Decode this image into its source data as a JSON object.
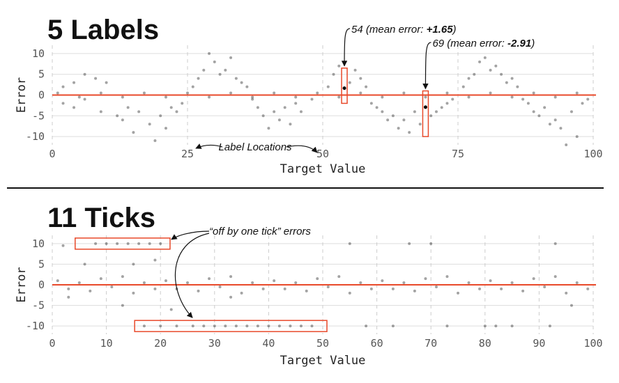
{
  "chart_data": [
    {
      "type": "scatter",
      "title": "5 Labels",
      "xlabel": "Target Value",
      "ylabel": "Error",
      "xlim": [
        0,
        100
      ],
      "ylim": [
        -12,
        12
      ],
      "xticks": [
        0,
        25,
        50,
        75,
        100
      ],
      "yticks": [
        -10,
        -5,
        0,
        5,
        10
      ],
      "grid": true,
      "point_color": "#333333",
      "reference_line": {
        "y": 0,
        "color": "#e8492a"
      },
      "x": [
        2,
        2,
        4,
        4,
        6,
        6,
        8,
        9,
        10,
        12,
        13,
        14,
        15,
        16,
        18,
        19,
        20,
        21,
        22,
        23,
        24,
        26,
        27,
        28,
        29,
        30,
        31,
        32,
        33,
        34,
        35,
        36,
        37,
        38,
        39,
        40,
        41,
        42,
        43,
        44,
        45,
        46,
        48,
        51,
        52,
        53,
        54,
        55,
        56,
        57,
        58,
        59,
        60,
        61,
        62,
        63,
        64,
        65,
        66,
        67,
        68,
        69,
        70,
        71,
        72,
        73,
        74,
        76,
        77,
        78,
        79,
        80,
        81,
        82,
        83,
        84,
        85,
        86,
        87,
        88,
        89,
        90,
        91,
        92,
        93,
        94,
        95,
        96,
        97,
        98,
        99,
        1,
        5,
        9,
        13,
        17,
        21,
        25,
        29,
        33,
        37,
        41,
        45,
        49,
        53,
        57,
        61,
        65,
        69,
        73,
        77,
        81,
        85,
        89,
        93,
        97
      ],
      "y": [
        2,
        -2,
        3,
        -3,
        5,
        -1,
        4,
        -4,
        3,
        -5,
        -6,
        -3,
        -9,
        -4,
        -7,
        -11,
        -5,
        -8,
        -3,
        -4,
        -2,
        2,
        4,
        6,
        10,
        8,
        5,
        6,
        9,
        4,
        3,
        2,
        -1,
        -3,
        -5,
        -8,
        -4,
        -6,
        -3,
        -7,
        -2,
        -4,
        -1,
        2,
        5,
        7,
        1.65,
        3,
        6,
        4,
        2,
        -2,
        -3,
        -4,
        -6,
        -5,
        -8,
        -6,
        -9,
        -4,
        -7,
        -2.91,
        -5,
        -4,
        -3,
        -2,
        -1,
        2,
        4,
        5,
        8,
        9,
        6,
        7,
        5,
        3,
        4,
        2,
        -1,
        -2,
        -4,
        -5,
        -3,
        -7,
        -6,
        -8,
        -12,
        -4,
        -10,
        -2,
        -1,
        0.5,
        -0.5,
        0.5,
        -0.5,
        0.5,
        -0.5,
        0.5,
        -0.5,
        0.5,
        -0.5,
        0.5,
        -0.5,
        0.5,
        -0.5,
        0.5,
        -0.5,
        0.5,
        -0.5,
        0.5,
        -0.5,
        0.5,
        -0.5,
        0.5,
        -0.5,
        0.5
      ],
      "annotations": [
        {
          "x": 54,
          "mean_error": 1.65,
          "box_y": [
            -2,
            6.5
          ],
          "text_parts": [
            "54 (mean error: ",
            "+1.65",
            ")"
          ]
        },
        {
          "x": 69,
          "mean_error": -2.91,
          "box_y": [
            -10,
            1
          ],
          "text_parts": [
            "69 (mean error: ",
            "-2.91",
            ")"
          ]
        }
      ],
      "range_note": {
        "text": "Label Locations",
        "targets": [
          25,
          50
        ]
      }
    },
    {
      "type": "scatter",
      "title": "11 Ticks",
      "xlabel": "Target Value",
      "ylabel": "Error",
      "xlim": [
        0,
        100
      ],
      "ylim": [
        -12,
        12
      ],
      "xticks": [
        0,
        10,
        20,
        30,
        40,
        50,
        60,
        70,
        80,
        90,
        100
      ],
      "yticks": [
        -10,
        -5,
        0,
        5,
        10
      ],
      "grid": true,
      "point_color": "#333333",
      "reference_line": {
        "y": 0,
        "color": "#e8492a"
      },
      "x": [
        1,
        3,
        5,
        7,
        9,
        11,
        13,
        15,
        17,
        19,
        21,
        23,
        25,
        27,
        29,
        31,
        33,
        35,
        37,
        39,
        41,
        43,
        45,
        47,
        49,
        51,
        53,
        55,
        57,
        59,
        61,
        63,
        65,
        67,
        69,
        71,
        73,
        75,
        77,
        79,
        81,
        83,
        85,
        87,
        89,
        91,
        93,
        95,
        97,
        99,
        2,
        6,
        8,
        10,
        12,
        14,
        15,
        16,
        18,
        19,
        20,
        17,
        20,
        23,
        26,
        28,
        30,
        32,
        34,
        36,
        38,
        40,
        42,
        44,
        46,
        48,
        13,
        22,
        33,
        55,
        58,
        63,
        66,
        70,
        73,
        80,
        82,
        85,
        92,
        96,
        93,
        3
      ],
      "y": [
        1,
        -1,
        0.5,
        -1.5,
        1.5,
        -0.5,
        2,
        -2,
        0.5,
        -1,
        1,
        -1,
        0.5,
        -1.5,
        1.5,
        -0.5,
        2,
        -2,
        0.5,
        -1,
        1,
        -1,
        0.5,
        -1.5,
        1.5,
        -0.5,
        2,
        -2,
        0.5,
        -1,
        1,
        -1,
        0.5,
        -1.5,
        1.5,
        -0.5,
        2,
        -2,
        0.5,
        -1,
        1,
        -1,
        0.5,
        -1.5,
        1.5,
        -0.5,
        2,
        -2,
        0.5,
        -1,
        9.5,
        5,
        10,
        10,
        10,
        10,
        5,
        10,
        10,
        6,
        10,
        -10,
        -10,
        -10,
        -10,
        -10,
        -10,
        -10,
        -10,
        -10,
        -10,
        -10,
        -10,
        -10,
        -10,
        -10,
        -5,
        -6,
        -3,
        10,
        -10,
        -10,
        10,
        10,
        -10,
        -10,
        -10,
        -10,
        -10,
        -5,
        10,
        -3
      ],
      "error_boxes": [
        {
          "xrange": [
            5,
            21
          ],
          "y": 10
        },
        {
          "xrange": [
            16,
            50
          ],
          "y": -10
        }
      ],
      "note": "“off by one tick” errors"
    }
  ]
}
